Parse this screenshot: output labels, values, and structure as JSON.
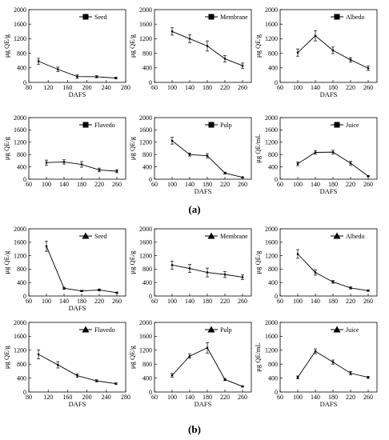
{
  "panel_labels": [
    "(a)",
    "(b)"
  ],
  "chart_data": [
    {
      "type": "line",
      "group": "a",
      "series": [
        {
          "name": "Seed",
          "marker": "square",
          "x": [
            100,
            140,
            180,
            220,
            260
          ],
          "y": [
            580,
            360,
            160,
            155,
            120
          ],
          "err": [
            80,
            60,
            50,
            30,
            25
          ]
        }
      ],
      "xlabel": "DAFS",
      "ylabel": "μg QE/g",
      "xlim": [
        80,
        280
      ],
      "ylim": [
        0,
        2000
      ],
      "xticks": [
        80,
        120,
        160,
        200,
        240,
        280
      ],
      "yticks": [
        0,
        400,
        800,
        1200,
        1600,
        2000
      ],
      "legend": "top-right"
    },
    {
      "type": "line",
      "group": "a",
      "series": [
        {
          "name": "Membrane",
          "marker": "square",
          "x": [
            100,
            140,
            180,
            220,
            260
          ],
          "y": [
            1400,
            1200,
            1000,
            650,
            460
          ],
          "err": [
            100,
            110,
            140,
            90,
            70
          ]
        }
      ],
      "xlabel": "",
      "ylabel": "μg QE/g",
      "xlim": [
        60,
        280
      ],
      "ylim": [
        0,
        2000
      ],
      "xticks": [
        60,
        100,
        140,
        180,
        220,
        260
      ],
      "yticks": [
        0,
        400,
        800,
        1200,
        1600,
        2000
      ],
      "legend": "top-right"
    },
    {
      "type": "line",
      "group": "a",
      "series": [
        {
          "name": "Albedo",
          "marker": "square",
          "x": [
            100,
            140,
            180,
            220,
            260
          ],
          "y": [
            820,
            1280,
            880,
            620,
            390
          ],
          "err": [
            100,
            140,
            90,
            60,
            60
          ]
        }
      ],
      "xlabel": "DAFS",
      "ylabel": "μg QE/g",
      "xlim": [
        60,
        280
      ],
      "ylim": [
        0,
        2000
      ],
      "xticks": [
        60,
        100,
        140,
        180,
        220,
        260
      ],
      "yticks": [
        0,
        400,
        800,
        1200,
        1600,
        2000
      ],
      "legend": "top-right"
    },
    {
      "type": "line",
      "group": "a",
      "series": [
        {
          "name": "Flavedo",
          "marker": "square",
          "x": [
            100,
            140,
            180,
            220,
            260
          ],
          "y": [
            540,
            560,
            480,
            300,
            260
          ],
          "err": [
            80,
            70,
            90,
            60,
            50
          ]
        }
      ],
      "xlabel": "",
      "ylabel": "μg QE/g",
      "xlim": [
        60,
        280
      ],
      "ylim": [
        0,
        2000
      ],
      "xticks": [
        60,
        100,
        140,
        180,
        220,
        260
      ],
      "yticks": [
        0,
        400,
        800,
        1200,
        1600,
        2000
      ],
      "legend": "top-right"
    },
    {
      "type": "line",
      "group": "a",
      "series": [
        {
          "name": "Pulp",
          "marker": "square",
          "x": [
            100,
            140,
            180,
            220,
            260
          ],
          "y": [
            1250,
            800,
            760,
            200,
            60
          ],
          "err": [
            110,
            50,
            70,
            30,
            15
          ]
        }
      ],
      "xlabel": "DAFS",
      "ylabel": "μg QE/g",
      "xlim": [
        60,
        280
      ],
      "ylim": [
        0,
        2000
      ],
      "xticks": [
        60,
        100,
        140,
        180,
        220,
        260
      ],
      "yticks": [
        0,
        400,
        800,
        1200,
        1600,
        2000
      ],
      "legend": "top-right"
    },
    {
      "type": "line",
      "group": "a",
      "series": [
        {
          "name": "Juice",
          "marker": "square",
          "x": [
            100,
            140,
            180,
            220,
            260
          ],
          "y": [
            500,
            870,
            880,
            520,
            100
          ],
          "err": [
            60,
            60,
            60,
            60,
            20
          ]
        }
      ],
      "xlabel": "DAFS",
      "ylabel": "μg QE/mL",
      "xlim": [
        60,
        280
      ],
      "ylim": [
        0,
        2000
      ],
      "xticks": [
        60,
        100,
        140,
        180,
        220,
        260
      ],
      "yticks": [
        0,
        400,
        800,
        1200,
        1600,
        2000
      ],
      "legend": "top-right"
    },
    {
      "type": "line",
      "group": "b",
      "series": [
        {
          "name": "Seed",
          "marker": "triangle",
          "x": [
            100,
            140,
            180,
            220,
            260
          ],
          "y": [
            1480,
            230,
            150,
            180,
            100
          ],
          "err": [
            150,
            30,
            20,
            30,
            15
          ]
        }
      ],
      "xlabel": "DAFS",
      "ylabel": "μg QE/g",
      "xlim": [
        60,
        280
      ],
      "ylim": [
        0,
        2000
      ],
      "xticks": [
        60,
        100,
        140,
        180,
        220,
        260
      ],
      "yticks": [
        0,
        400,
        800,
        1200,
        1600,
        2000
      ],
      "legend": "top-right"
    },
    {
      "type": "line",
      "group": "b",
      "series": [
        {
          "name": "Membrane",
          "marker": "triangle",
          "x": [
            100,
            140,
            180,
            220,
            260
          ],
          "y": [
            920,
            820,
            700,
            640,
            560
          ],
          "err": [
            120,
            120,
            130,
            90,
            70
          ]
        }
      ],
      "xlabel": "",
      "ylabel": "μg QE/g",
      "xlim": [
        60,
        280
      ],
      "ylim": [
        0,
        2000
      ],
      "xticks": [
        60,
        100,
        140,
        180,
        220,
        260
      ],
      "yticks": [
        0,
        400,
        800,
        1200,
        1600,
        2000
      ],
      "legend": "top-right"
    },
    {
      "type": "line",
      "group": "b",
      "series": [
        {
          "name": "Albedo",
          "marker": "triangle",
          "x": [
            100,
            140,
            180,
            220,
            260
          ],
          "y": [
            1250,
            700,
            420,
            240,
            160
          ],
          "err": [
            130,
            80,
            40,
            30,
            20
          ]
        }
      ],
      "xlabel": "",
      "ylabel": "μg QE/g",
      "xlim": [
        60,
        280
      ],
      "ylim": [
        0,
        2000
      ],
      "xticks": [
        60,
        100,
        140,
        180,
        220,
        260
      ],
      "yticks": [
        0,
        400,
        800,
        1200,
        1600,
        2000
      ],
      "legend": "top-right"
    },
    {
      "type": "line",
      "group": "b",
      "series": [
        {
          "name": "Flavedo",
          "marker": "triangle",
          "x": [
            100,
            140,
            180,
            220,
            260
          ],
          "y": [
            1080,
            780,
            470,
            320,
            240
          ],
          "err": [
            130,
            90,
            50,
            30,
            20
          ]
        }
      ],
      "xlabel": "DAFS",
      "ylabel": "μg QE/g",
      "xlim": [
        80,
        280
      ],
      "ylim": [
        0,
        2000
      ],
      "xticks": [
        80,
        120,
        160,
        200,
        240,
        280
      ],
      "yticks": [
        0,
        400,
        800,
        1200,
        1600,
        2000
      ],
      "legend": "top-right"
    },
    {
      "type": "line",
      "group": "b",
      "series": [
        {
          "name": "Pulp",
          "marker": "triangle",
          "x": [
            100,
            140,
            180,
            220,
            260
          ],
          "y": [
            480,
            1030,
            1270,
            360,
            160
          ],
          "err": [
            50,
            60,
            150,
            30,
            20
          ]
        }
      ],
      "xlabel": "DAFS",
      "ylabel": "μg QE/g",
      "xlim": [
        60,
        280
      ],
      "ylim": [
        0,
        2000
      ],
      "xticks": [
        60,
        100,
        140,
        180,
        220,
        260
      ],
      "yticks": [
        0,
        400,
        800,
        1200,
        1600,
        2000
      ],
      "legend": "top-right"
    },
    {
      "type": "line",
      "group": "b",
      "series": [
        {
          "name": "Juice",
          "marker": "triangle",
          "x": [
            100,
            140,
            180,
            220,
            260
          ],
          "y": [
            420,
            1170,
            860,
            540,
            420
          ],
          "err": [
            40,
            70,
            60,
            50,
            30
          ]
        }
      ],
      "xlabel": "DAFS",
      "ylabel": "μg QE/mL",
      "xlim": [
        60,
        280
      ],
      "ylim": [
        0,
        2000
      ],
      "xticks": [
        60,
        100,
        140,
        180,
        220,
        260
      ],
      "yticks": [
        0,
        400,
        800,
        1200,
        1600,
        2000
      ],
      "legend": "top-right"
    }
  ]
}
